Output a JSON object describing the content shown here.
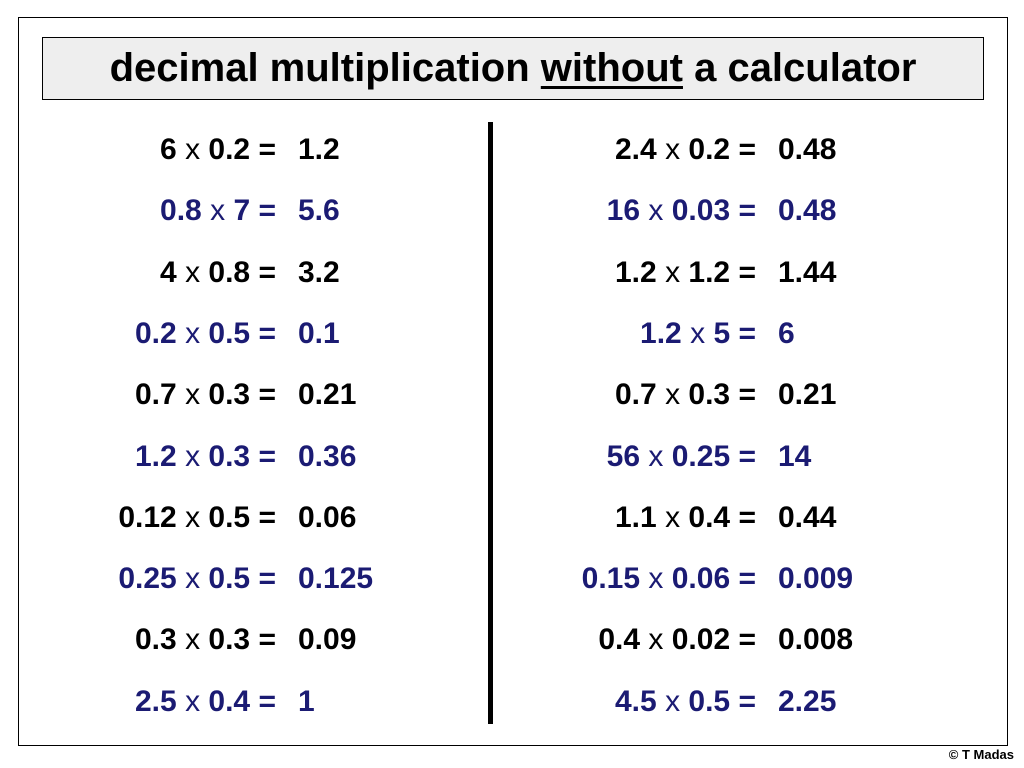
{
  "title": {
    "before": "decimal multiplication ",
    "underlined": "without",
    "after": " a calculator"
  },
  "copyright": "© T Madas",
  "colors": {
    "black": "#000000",
    "blue": "#1b1b73"
  },
  "left_column": [
    {
      "a": "6",
      "op": "x",
      "b": "0.2",
      "eq": "=",
      "ans": "1.2",
      "color": "black"
    },
    {
      "a": "0.8",
      "op": "x",
      "b": "7",
      "eq": "=",
      "ans": "5.6",
      "color": "blue"
    },
    {
      "a": "4",
      "op": "x",
      "b": "0.8",
      "eq": "=",
      "ans": "3.2",
      "color": "black"
    },
    {
      "a": "0.2",
      "op": "x",
      "b": "0.5",
      "eq": "=",
      "ans": "0.1",
      "color": "blue"
    },
    {
      "a": "0.7",
      "op": "x",
      "b": "0.3",
      "eq": "=",
      "ans": "0.21",
      "color": "black"
    },
    {
      "a": "1.2",
      "op": "x",
      "b": "0.3",
      "eq": "=",
      "ans": "0.36",
      "color": "blue"
    },
    {
      "a": "0.12",
      "op": "x",
      "b": "0.5",
      "eq": "=",
      "ans": "0.06",
      "color": "black"
    },
    {
      "a": "0.25",
      "op": "x",
      "b": "0.5",
      "eq": "=",
      "ans": "0.125",
      "color": "blue"
    },
    {
      "a": "0.3",
      "op": "x",
      "b": "0.3",
      "eq": "=",
      "ans": "0.09",
      "color": "black"
    },
    {
      "a": "2.5",
      "op": "x",
      "b": "0.4",
      "eq": "=",
      "ans": "1",
      "color": "blue"
    }
  ],
  "right_column": [
    {
      "a": "2.4",
      "op": "x",
      "b": "0.2",
      "eq": "=",
      "ans": "0.48",
      "color": "black"
    },
    {
      "a": "16",
      "op": "x",
      "b": "0.03",
      "eq": "=",
      "ans": "0.48",
      "color": "blue"
    },
    {
      "a": "1.2",
      "op": "x",
      "b": "1.2",
      "eq": "=",
      "ans": "1.44",
      "color": "black"
    },
    {
      "a": "1.2",
      "op": "x",
      "b": "5",
      "eq": "=",
      "ans": "6",
      "color": "blue"
    },
    {
      "a": "0.7",
      "op": "x",
      "b": "0.3",
      "eq": "=",
      "ans": "0.21",
      "color": "black"
    },
    {
      "a": "56",
      "op": "x",
      "b": "0.25",
      "eq": "=",
      "ans": "14",
      "color": "blue"
    },
    {
      "a": "1.1",
      "op": "x",
      "b": "0.4",
      "eq": "=",
      "ans": "0.44",
      "color": "black"
    },
    {
      "a": "0.15",
      "op": "x",
      "b": "0.06",
      "eq": "=",
      "ans": "0.009",
      "color": "blue"
    },
    {
      "a": "0.4",
      "op": "x",
      "b": "0.02",
      "eq": "=",
      "ans": "0.008",
      "color": "black"
    },
    {
      "a": "4.5",
      "op": "x",
      "b": "0.5",
      "eq": "=",
      "ans": "2.25",
      "color": "blue"
    }
  ]
}
